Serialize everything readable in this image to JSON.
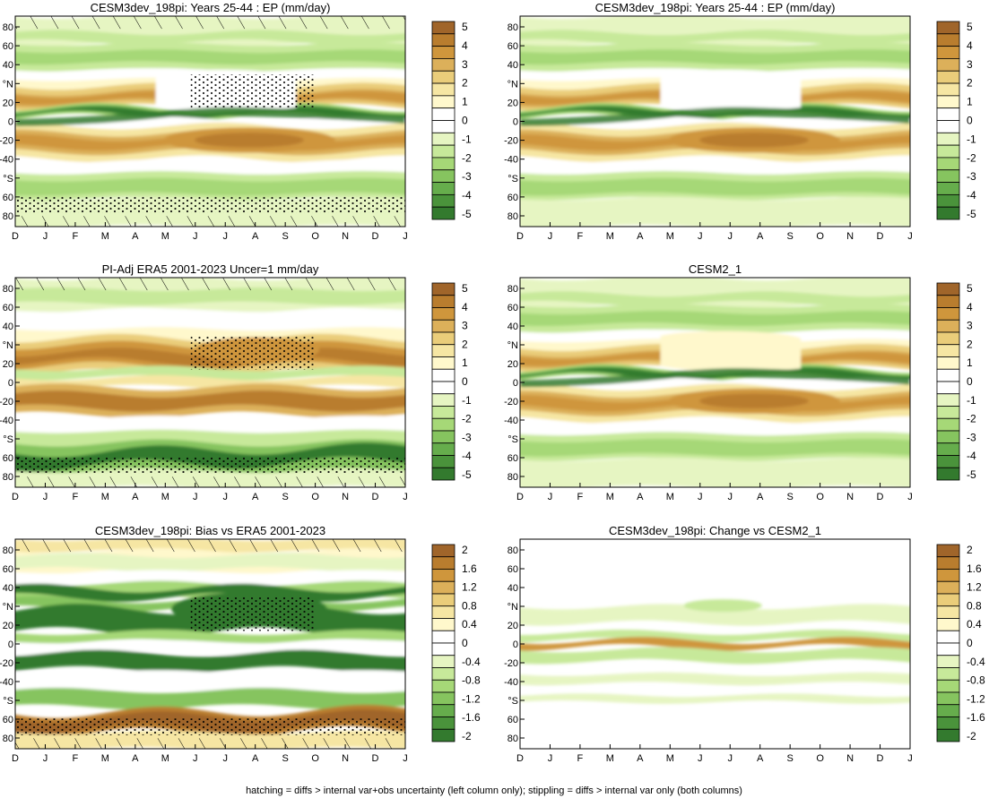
{
  "footer": "hatching = diffs > internal var+obs uncertainty (left column only); stippling = diffs > internal var only (both columns)",
  "colors": {
    "brown": [
      "#fff8cc",
      "#f6e6a3",
      "#eacd7a",
      "#dcb05a",
      "#cf963c",
      "#b97d2e",
      "#a0652a"
    ],
    "green": [
      "#e6f5c2",
      "#c7e99a",
      "#a6d877",
      "#86c45f",
      "#66ad4c",
      "#4a933b",
      "#337a2e"
    ],
    "white": "#ffffff"
  },
  "chart_data": [
    {
      "type": "contour",
      "title": "CESM3dev_198pi: Years 25-44 : EP (mm/day)",
      "x_ticks": [
        "D",
        "J",
        "F",
        "M",
        "A",
        "M",
        "J",
        "J",
        "A",
        "S",
        "O",
        "N",
        "D",
        "J"
      ],
      "y_ticks": [
        "80",
        "60",
        "40",
        "°N",
        "20",
        "0",
        "-20",
        "-40",
        "°S",
        "60",
        "80"
      ],
      "colorbar": [
        "5",
        "4",
        "3",
        "2",
        "1",
        "0",
        "-1",
        "-2",
        "-3",
        "-4",
        "-5"
      ],
      "hatching": true
    },
    {
      "type": "contour",
      "title": "CESM3dev_198pi: Years 25-44 : EP (mm/day)",
      "x_ticks": [
        "D",
        "J",
        "F",
        "M",
        "A",
        "M",
        "J",
        "J",
        "A",
        "S",
        "O",
        "N",
        "D",
        "J"
      ],
      "y_ticks": [
        "80",
        "60",
        "40",
        "°N",
        "20",
        "0",
        "-20",
        "-40",
        "°S",
        "60",
        "80"
      ],
      "colorbar": [
        "5",
        "4",
        "3",
        "2",
        "1",
        "0",
        "-1",
        "-2",
        "-3",
        "-4",
        "-5"
      ],
      "hatching": false
    },
    {
      "type": "contour",
      "title": "PI-Adj ERA5 2001-2023 Uncer=1 mm/day",
      "x_ticks": [
        "D",
        "J",
        "F",
        "M",
        "A",
        "M",
        "J",
        "J",
        "A",
        "S",
        "O",
        "N",
        "D",
        "J"
      ],
      "y_ticks": [
        "80",
        "60",
        "40",
        "°N",
        "20",
        "0",
        "-20",
        "-40",
        "°S",
        "60",
        "80"
      ],
      "colorbar": [
        "5",
        "4",
        "3",
        "2",
        "1",
        "0",
        "-1",
        "-2",
        "-3",
        "-4",
        "-5"
      ],
      "hatching": true
    },
    {
      "type": "contour",
      "title": "CESM2_1",
      "x_ticks": [
        "D",
        "J",
        "F",
        "M",
        "A",
        "M",
        "J",
        "J",
        "A",
        "S",
        "O",
        "N",
        "D",
        "J"
      ],
      "y_ticks": [
        "80",
        "60",
        "40",
        "°N",
        "20",
        "0",
        "-20",
        "-40",
        "°S",
        "60",
        "80"
      ],
      "colorbar": [
        "5",
        "4",
        "3",
        "2",
        "1",
        "0",
        "-1",
        "-2",
        "-3",
        "-4",
        "-5"
      ],
      "hatching": false
    },
    {
      "type": "contour",
      "title": "CESM3dev_198pi: Bias vs ERA5 2001-2023",
      "x_ticks": [
        "D",
        "J",
        "F",
        "M",
        "A",
        "M",
        "J",
        "J",
        "A",
        "S",
        "O",
        "N",
        "D",
        "J"
      ],
      "y_ticks": [
        "80",
        "60",
        "40",
        "°N",
        "20",
        "0",
        "-20",
        "-40",
        "°S",
        "60",
        "80"
      ],
      "colorbar": [
        "2",
        "1.6",
        "1.2",
        "0.8",
        "0.4",
        "0",
        "-0.4",
        "-0.8",
        "-1.2",
        "-1.6",
        "-2"
      ],
      "hatching": true
    },
    {
      "type": "contour",
      "title": "CESM3dev_198pi: Change vs CESM2_1",
      "x_ticks": [
        "D",
        "J",
        "F",
        "M",
        "A",
        "M",
        "J",
        "J",
        "A",
        "S",
        "O",
        "N",
        "D",
        "J"
      ],
      "y_ticks": [
        "80",
        "60",
        "40",
        "°N",
        "20",
        "0",
        "-20",
        "-40",
        "°S",
        "60",
        "80"
      ],
      "colorbar": [
        "2",
        "1.6",
        "1.2",
        "0.8",
        "0.4",
        "0",
        "-0.4",
        "-0.8",
        "-1.2",
        "-1.6",
        "-2"
      ],
      "hatching": false
    }
  ]
}
